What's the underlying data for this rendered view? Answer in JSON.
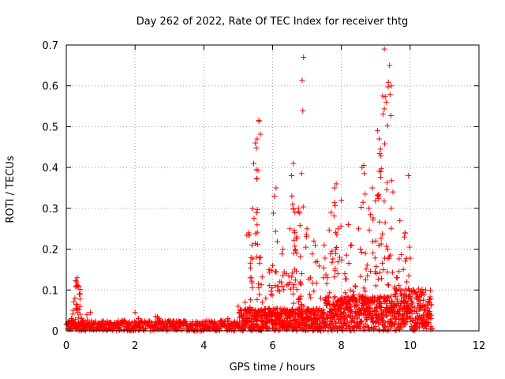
{
  "chart_data": {
    "type": "scatter",
    "title": "Day 262 of 2022, Rate Of TEC Index for receiver thtg",
    "xlabel": "GPS time / hours",
    "ylabel": "ROTI / TECUs",
    "xlim": [
      0,
      12
    ],
    "ylim": [
      0,
      0.7
    ],
    "x_ticks": [
      "0",
      "2",
      "4",
      "6",
      "8",
      "10",
      "12"
    ],
    "y_ticks": [
      "0",
      "0.1",
      "0.2",
      "0.3",
      "0.4",
      "0.5",
      "0.6",
      "0.7"
    ],
    "grid": true,
    "marker": "plus",
    "color": "#ff0000",
    "series": [
      {
        "name": "ROTI",
        "x": [
          0.05,
          0.1,
          0.15,
          0.2,
          0.25,
          0.3,
          0.32,
          0.35,
          0.38,
          0.4,
          0.45,
          0.5,
          0.6,
          0.7,
          0.8,
          1.0,
          1.2,
          1.5,
          1.8,
          2.0,
          2.1,
          2.3,
          2.6,
          2.7,
          3.0,
          3.3,
          3.6,
          4.0,
          4.3,
          4.5,
          4.7,
          5.0,
          5.1,
          5.2,
          5.3,
          5.35,
          5.4,
          5.45,
          5.5,
          5.55,
          5.6,
          5.65,
          5.7,
          5.8,
          5.9,
          6.0,
          6.05,
          6.1,
          6.2,
          6.3,
          6.4,
          6.5,
          6.55,
          6.6,
          6.65,
          6.7,
          6.75,
          6.8,
          6.85,
          6.9,
          7.0,
          7.1,
          7.2,
          7.3,
          7.4,
          7.5,
          7.6,
          7.7,
          7.8,
          7.85,
          7.9,
          7.95,
          8.0,
          8.1,
          8.2,
          8.3,
          8.4,
          8.5,
          8.6,
          8.65,
          8.7,
          8.8,
          8.9,
          9.0,
          9.05,
          9.1,
          9.15,
          9.2,
          9.25,
          9.3,
          9.35,
          9.4,
          9.45,
          9.5,
          9.6,
          9.7,
          9.8,
          9.85,
          9.9,
          9.95,
          10.0,
          10.1,
          10.2,
          10.3,
          10.4,
          10.5,
          10.6
        ],
        "y": [
          0.02,
          0.025,
          0.03,
          0.05,
          0.08,
          0.12,
          0.13,
          0.11,
          0.09,
          0.06,
          0.03,
          0.025,
          0.04,
          0.045,
          0.02,
          0.015,
          0.02,
          0.018,
          0.02,
          0.045,
          0.03,
          0.02,
          0.035,
          0.03,
          0.02,
          0.022,
          0.018,
          0.015,
          0.02,
          0.025,
          0.03,
          0.06,
          0.05,
          0.07,
          0.24,
          0.13,
          0.21,
          0.41,
          0.46,
          0.47,
          0.515,
          0.18,
          0.07,
          0.08,
          0.15,
          0.16,
          0.33,
          0.35,
          0.12,
          0.2,
          0.14,
          0.25,
          0.38,
          0.41,
          0.29,
          0.23,
          0.3,
          0.12,
          0.14,
          0.67,
          0.25,
          0.13,
          0.22,
          0.17,
          0.08,
          0.21,
          0.13,
          0.29,
          0.35,
          0.36,
          0.25,
          0.18,
          0.32,
          0.14,
          0.26,
          0.21,
          0.11,
          0.25,
          0.4,
          0.405,
          0.19,
          0.3,
          0.35,
          0.22,
          0.49,
          0.47,
          0.39,
          0.575,
          0.69,
          0.56,
          0.2,
          0.65,
          0.6,
          0.34,
          0.13,
          0.27,
          0.15,
          0.24,
          0.12,
          0.38,
          0.09,
          0.1,
          0.08,
          0.06,
          0.05,
          0.04,
          0.03
        ]
      }
    ],
    "noise_band": {
      "x_start": 0.0,
      "x_end": 10.6,
      "y_min": 0.0,
      "y_max_base": 0.025
    }
  }
}
